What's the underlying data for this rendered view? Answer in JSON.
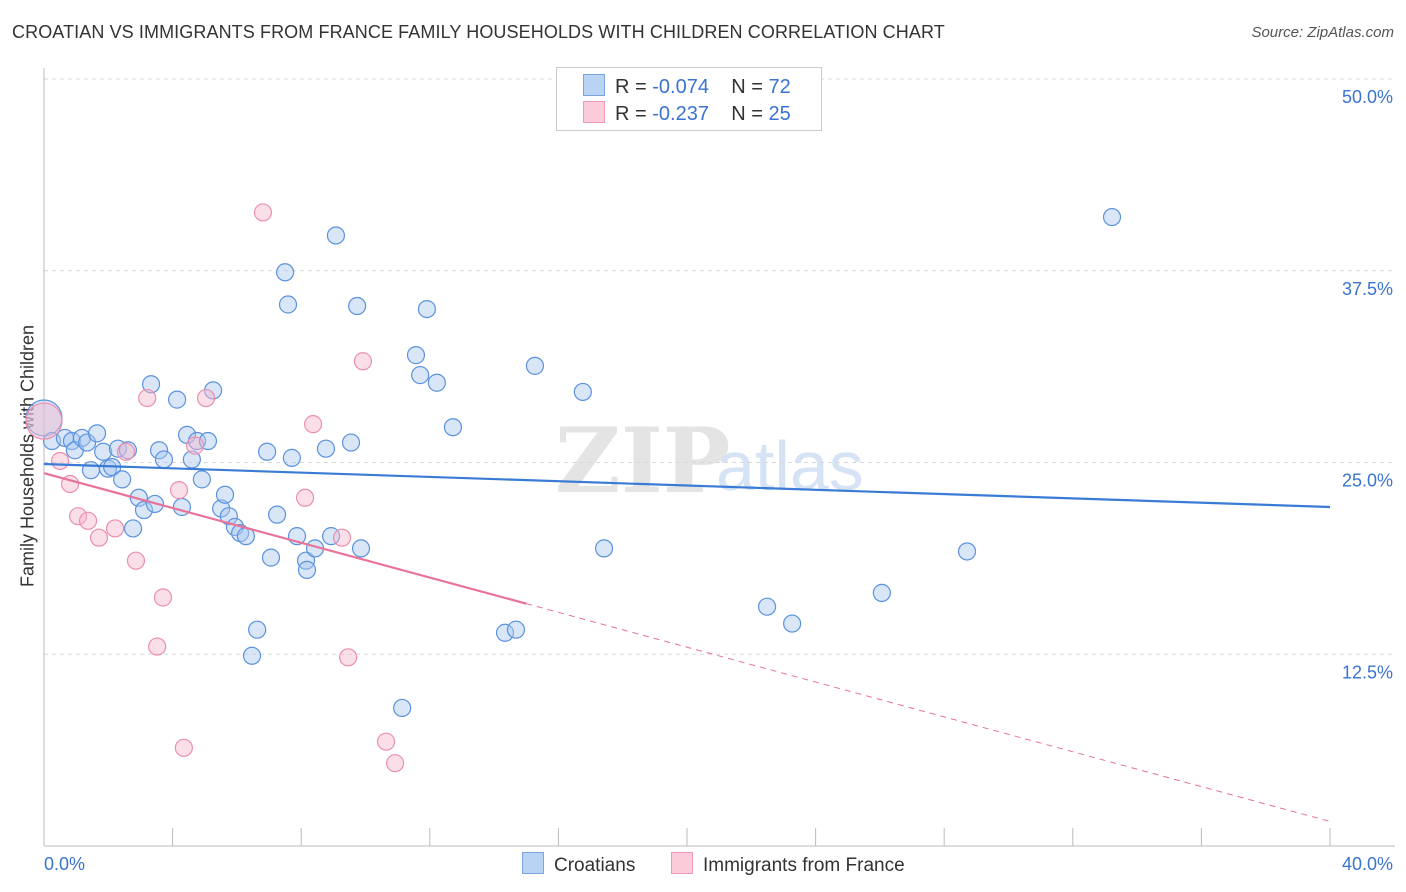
{
  "title": "CROATIAN VS IMMIGRANTS FROM FRANCE FAMILY HOUSEHOLDS WITH CHILDREN CORRELATION CHART",
  "source": "Source: ZipAtlas.com",
  "watermark": "ZIPatlas",
  "legend_top": [
    {
      "r_label": "R = ",
      "r_value": "-0.074",
      "n_label": "N = ",
      "n_value": "72"
    },
    {
      "r_label": "R = ",
      "r_value": "-0.237",
      "n_label": "N = ",
      "n_value": "25"
    }
  ],
  "colors": {
    "blue": "#3a7bd5",
    "blue_fill": "#a9c8f0",
    "pink": "#e8739b",
    "pink_fill": "#f6b8cb"
  },
  "chart_data": {
    "type": "scatter",
    "title": "CROATIAN VS IMMIGRANTS FROM FRANCE FAMILY HOUSEHOLDS WITH CHILDREN CORRELATION CHART",
    "xlabel": "",
    "ylabel": "Family Households with Children",
    "xlim": [
      0,
      40
    ],
    "ylim": [
      0,
      50
    ],
    "x_tick_labels": [
      "0.0%",
      "40.0%"
    ],
    "y_ticks": [
      50,
      37.5,
      25,
      12.5
    ],
    "y_tick_labels": [
      "50.0%",
      "37.5%",
      "25.0%",
      "12.5%"
    ],
    "grid": true,
    "legend_placement": "bottom-center",
    "series": [
      {
        "name": "Croatians",
        "color": "#3a7bd5",
        "trend": {
          "x": [
            0,
            40
          ],
          "y": [
            24.9,
            22.1
          ]
        },
        "points": [
          [
            0,
            27.9,
            "big"
          ],
          [
            0.25,
            26.4
          ],
          [
            0.65,
            26.6
          ],
          [
            0.87,
            26.4
          ],
          [
            0.96,
            25.8
          ],
          [
            1.18,
            26.6
          ],
          [
            1.34,
            26.3
          ],
          [
            1.65,
            26.9
          ],
          [
            1.46,
            24.5
          ],
          [
            1.84,
            25.7
          ],
          [
            1.99,
            24.6
          ],
          [
            2.12,
            24.7
          ],
          [
            2.3,
            25.9
          ],
          [
            2.43,
            23.9
          ],
          [
            2.61,
            25.8
          ],
          [
            2.77,
            20.7
          ],
          [
            2.95,
            22.7
          ],
          [
            3.11,
            21.9
          ],
          [
            3.33,
            30.1
          ],
          [
            3.45,
            22.3
          ],
          [
            3.58,
            25.8
          ],
          [
            3.73,
            25.2
          ],
          [
            4.14,
            29.1
          ],
          [
            4.29,
            22.1
          ],
          [
            4.45,
            26.8
          ],
          [
            4.6,
            25.2
          ],
          [
            4.76,
            26.4
          ],
          [
            4.91,
            23.9
          ],
          [
            5.1,
            26.4
          ],
          [
            5.26,
            29.7
          ],
          [
            5.51,
            22.0
          ],
          [
            5.63,
            22.9
          ],
          [
            5.75,
            21.5
          ],
          [
            5.94,
            20.8
          ],
          [
            6.1,
            20.4
          ],
          [
            6.28,
            20.2
          ],
          [
            6.47,
            12.4
          ],
          [
            6.63,
            14.1
          ],
          [
            6.94,
            25.7
          ],
          [
            7.06,
            18.8
          ],
          [
            7.25,
            21.6
          ],
          [
            7.5,
            37.4
          ],
          [
            7.59,
            35.3
          ],
          [
            7.71,
            25.3
          ],
          [
            7.87,
            20.2
          ],
          [
            8.15,
            18.6
          ],
          [
            8.18,
            18.0
          ],
          [
            8.43,
            19.4
          ],
          [
            8.77,
            25.9
          ],
          [
            8.93,
            20.2
          ],
          [
            9.08,
            39.8
          ],
          [
            9.55,
            26.3
          ],
          [
            9.74,
            35.2
          ],
          [
            9.86,
            19.4
          ],
          [
            11.14,
            9.0
          ],
          [
            11.57,
            32.0
          ],
          [
            11.7,
            30.7
          ],
          [
            11.91,
            35.0
          ],
          [
            12.22,
            30.2
          ],
          [
            12.72,
            27.3
          ],
          [
            14.34,
            13.9
          ],
          [
            14.68,
            14.1
          ],
          [
            15.27,
            31.3
          ],
          [
            16.76,
            29.6
          ],
          [
            17.42,
            19.4
          ],
          [
            22.49,
            15.6
          ],
          [
            23.27,
            14.5
          ],
          [
            26.06,
            16.5
          ],
          [
            28.71,
            19.2
          ],
          [
            33.22,
            41.0
          ]
        ]
      },
      {
        "name": "Immigrants from France",
        "color": "#e8739b",
        "trend": {
          "x": [
            0,
            15.0
          ],
          "y": [
            24.3,
            15.8
          ],
          "dashed_to": [
            40,
            1.6
          ]
        },
        "points": [
          [
            0,
            27.7,
            "big"
          ],
          [
            0.5,
            25.1
          ],
          [
            0.81,
            23.6
          ],
          [
            1.06,
            21.5
          ],
          [
            1.37,
            21.2
          ],
          [
            1.71,
            20.1
          ],
          [
            2.21,
            20.7
          ],
          [
            2.55,
            25.7
          ],
          [
            2.86,
            18.6
          ],
          [
            3.21,
            29.2
          ],
          [
            3.52,
            13.0
          ],
          [
            3.7,
            16.2
          ],
          [
            4.2,
            23.2
          ],
          [
            4.35,
            6.4
          ],
          [
            4.7,
            26.1
          ],
          [
            5.04,
            29.2
          ],
          [
            6.81,
            41.3
          ],
          [
            8.12,
            22.7
          ],
          [
            8.37,
            27.5
          ],
          [
            9.27,
            20.1
          ],
          [
            9.46,
            12.3
          ],
          [
            9.92,
            31.6
          ],
          [
            10.64,
            6.8
          ],
          [
            10.92,
            5.4
          ]
        ]
      }
    ]
  }
}
